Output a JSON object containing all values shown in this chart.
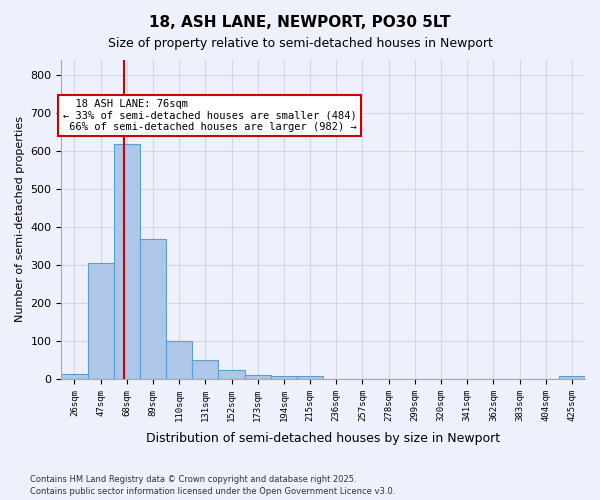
{
  "title": "18, ASH LANE, NEWPORT, PO30 5LT",
  "subtitle": "Size of property relative to semi-detached houses in Newport",
  "xlabel": "Distribution of semi-detached houses by size in Newport",
  "ylabel": "Number of semi-detached properties",
  "bar_edges": [
    26,
    47,
    68,
    89,
    110,
    131,
    152,
    173,
    194,
    215,
    236,
    257,
    278,
    299,
    320,
    341,
    362,
    383,
    404,
    425,
    446
  ],
  "bar_heights": [
    14,
    304,
    620,
    368,
    100,
    50,
    23,
    10,
    8,
    8,
    0,
    0,
    0,
    0,
    0,
    0,
    0,
    0,
    0,
    8
  ],
  "bar_color": "#aec6e8",
  "bar_edge_color": "#5a9fd4",
  "grid_color": "#d0d8ef",
  "bg_color": "#eef0fb",
  "red_line_x": 76,
  "annotation_title": "18 ASH LANE: 76sqm",
  "annotation_line1": "← 33% of semi-detached houses are smaller (484)",
  "annotation_line2": "66% of semi-detached houses are larger (982) →",
  "annotation_box_color": "#ffffff",
  "annotation_box_edge": "#cc0000",
  "footnote1": "Contains HM Land Registry data © Crown copyright and database right 2025.",
  "footnote2": "Contains public sector information licensed under the Open Government Licence v3.0.",
  "tick_labels": [
    "26sqm",
    "47sqm",
    "68sqm",
    "89sqm",
    "110sqm",
    "131sqm",
    "152sqm",
    "173sqm",
    "194sqm",
    "215sqm",
    "236sqm",
    "257sqm",
    "278sqm",
    "299sqm",
    "320sqm",
    "341sqm",
    "362sqm",
    "383sqm",
    "404sqm",
    "425sqm"
  ],
  "ylim": [
    0,
    840
  ],
  "yticks": [
    0,
    100,
    200,
    300,
    400,
    500,
    600,
    700,
    800
  ]
}
